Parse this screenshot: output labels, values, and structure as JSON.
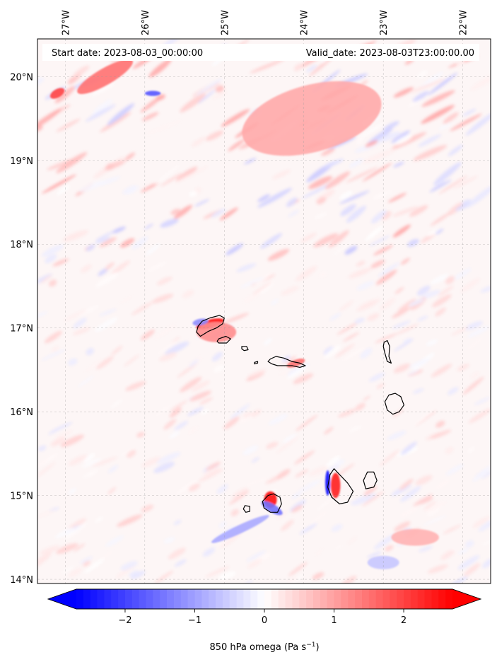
{
  "header": {
    "start_date": "Start date: 2023-08-03_00:00:00",
    "valid_date": "Valid_date: 2023-08-03T23:00:00.00"
  },
  "map": {
    "variable": "850 hPa omega",
    "unit": "Pa s",
    "unit_exponent": "−1",
    "lon_range": [
      -27.35,
      -21.65
    ],
    "lat_range": [
      13.95,
      20.45
    ],
    "lon_ticks": [
      {
        "value": -27,
        "label": "27°W"
      },
      {
        "value": -26,
        "label": "26°W"
      },
      {
        "value": -25,
        "label": "25°W"
      },
      {
        "value": -24,
        "label": "24°W"
      },
      {
        "value": -23,
        "label": "23°W"
      },
      {
        "value": -22,
        "label": "22°W"
      }
    ],
    "lat_ticks": [
      {
        "value": 20,
        "label": "20°N"
      },
      {
        "value": 19,
        "label": "19°N"
      },
      {
        "value": 18,
        "label": "18°N"
      },
      {
        "value": 17,
        "label": "17°N"
      },
      {
        "value": 16,
        "label": "16°N"
      },
      {
        "value": 15,
        "label": "15°N"
      },
      {
        "value": 14,
        "label": "14°N"
      }
    ],
    "gridlines": true,
    "coastline_color": "#000000",
    "islands": [
      {
        "lonlat": [
          [
            -25.33,
            17.02
          ],
          [
            -25.28,
            17.08
          ],
          [
            -25.18,
            17.12
          ],
          [
            -25.06,
            17.15
          ],
          [
            -25.0,
            17.12
          ],
          [
            -25.02,
            17.05
          ],
          [
            -25.1,
            17.0
          ],
          [
            -25.2,
            16.96
          ],
          [
            -25.3,
            16.9
          ],
          [
            -25.35,
            16.95
          ]
        ]
      },
      {
        "lonlat": [
          [
            -25.07,
            16.87
          ],
          [
            -24.98,
            16.9
          ],
          [
            -24.92,
            16.87
          ],
          [
            -24.97,
            16.82
          ],
          [
            -25.07,
            16.82
          ],
          [
            -25.09,
            16.84
          ]
        ]
      },
      {
        "lonlat": [
          [
            -24.78,
            16.78
          ],
          [
            -24.72,
            16.78
          ],
          [
            -24.7,
            16.74
          ],
          [
            -24.75,
            16.73
          ],
          [
            -24.78,
            16.75
          ]
        ]
      },
      {
        "lonlat": [
          [
            -24.62,
            16.59
          ],
          [
            -24.58,
            16.6
          ],
          [
            -24.58,
            16.58
          ],
          [
            -24.62,
            16.57
          ]
        ]
      },
      {
        "lonlat": [
          [
            -24.42,
            16.63
          ],
          [
            -24.35,
            16.66
          ],
          [
            -24.25,
            16.64
          ],
          [
            -24.15,
            16.6
          ],
          [
            -24.05,
            16.58
          ],
          [
            -23.98,
            16.55
          ],
          [
            -24.05,
            16.53
          ],
          [
            -24.15,
            16.55
          ],
          [
            -24.25,
            16.55
          ],
          [
            -24.33,
            16.55
          ],
          [
            -24.4,
            16.57
          ],
          [
            -24.45,
            16.6
          ]
        ]
      },
      {
        "lonlat": [
          [
            -22.99,
            16.83
          ],
          [
            -22.95,
            16.85
          ],
          [
            -22.92,
            16.78
          ],
          [
            -22.93,
            16.66
          ],
          [
            -22.9,
            16.58
          ],
          [
            -22.95,
            16.6
          ],
          [
            -22.98,
            16.7
          ],
          [
            -23.0,
            16.78
          ]
        ]
      },
      {
        "lonlat": [
          [
            -22.93,
            16.2
          ],
          [
            -22.85,
            16.22
          ],
          [
            -22.78,
            16.18
          ],
          [
            -22.74,
            16.08
          ],
          [
            -22.8,
            16.0
          ],
          [
            -22.88,
            15.97
          ],
          [
            -22.95,
            16.02
          ],
          [
            -22.98,
            16.12
          ]
        ]
      },
      {
        "lonlat": [
          [
            -23.62,
            15.32
          ],
          [
            -23.55,
            15.25
          ],
          [
            -23.45,
            15.15
          ],
          [
            -23.38,
            15.05
          ],
          [
            -23.45,
            14.92
          ],
          [
            -23.55,
            14.9
          ],
          [
            -23.65,
            14.98
          ],
          [
            -23.7,
            15.1
          ],
          [
            -23.67,
            15.25
          ]
        ]
      },
      {
        "lonlat": [
          [
            -23.2,
            15.28
          ],
          [
            -23.12,
            15.28
          ],
          [
            -23.08,
            15.18
          ],
          [
            -23.12,
            15.1
          ],
          [
            -23.22,
            15.08
          ],
          [
            -23.25,
            15.18
          ]
        ]
      },
      {
        "lonlat": [
          [
            -24.38,
            15.02
          ],
          [
            -24.3,
            14.98
          ],
          [
            -24.28,
            14.9
          ],
          [
            -24.33,
            14.8
          ],
          [
            -24.42,
            14.8
          ],
          [
            -24.5,
            14.85
          ],
          [
            -24.52,
            14.93
          ],
          [
            -24.45,
            15.0
          ]
        ]
      },
      {
        "lonlat": [
          [
            -24.74,
            14.88
          ],
          [
            -24.68,
            14.87
          ],
          [
            -24.68,
            14.81
          ],
          [
            -24.73,
            14.8
          ],
          [
            -24.76,
            14.84
          ]
        ]
      }
    ],
    "field": {
      "background_noise": true,
      "hotspots": [
        {
          "lon": -25.18,
          "lat": 17.05,
          "value": 2.6,
          "rx": 0.18,
          "ry": 0.05,
          "rotate": -15
        },
        {
          "lon": -25.1,
          "lat": 16.95,
          "value": 1.2,
          "rx": 0.25,
          "ry": 0.12,
          "rotate": 0
        },
        {
          "lon": -25.3,
          "lat": 17.07,
          "value": -1.2,
          "rx": 0.1,
          "ry": 0.04,
          "rotate": -10
        },
        {
          "lon": -24.1,
          "lat": 16.58,
          "value": 1.5,
          "rx": 0.12,
          "ry": 0.04,
          "rotate": -20
        },
        {
          "lon": -24.42,
          "lat": 14.95,
          "value": 2.6,
          "rx": 0.08,
          "ry": 0.1,
          "rotate": 0
        },
        {
          "lon": -24.4,
          "lat": 14.85,
          "value": -1.5,
          "rx": 0.15,
          "ry": 0.05,
          "rotate": 30
        },
        {
          "lon": -23.6,
          "lat": 15.12,
          "value": 2.4,
          "rx": 0.06,
          "ry": 0.15,
          "rotate": 0
        },
        {
          "lon": -23.7,
          "lat": 15.15,
          "value": -2.6,
          "rx": 0.03,
          "ry": 0.15,
          "rotate": 0
        },
        {
          "lon": -24.8,
          "lat": 14.6,
          "value": -0.9,
          "rx": 0.4,
          "ry": 0.05,
          "rotate": -25
        },
        {
          "lon": -22.6,
          "lat": 14.5,
          "value": 0.8,
          "rx": 0.3,
          "ry": 0.1,
          "rotate": 0
        },
        {
          "lon": -23.9,
          "lat": 19.5,
          "value": 0.9,
          "rx": 0.9,
          "ry": 0.4,
          "rotate": -15
        },
        {
          "lon": -26.5,
          "lat": 20.0,
          "value": 1.5,
          "rx": 0.4,
          "ry": 0.1,
          "rotate": -30
        },
        {
          "lon": -27.1,
          "lat": 19.8,
          "value": 2.0,
          "rx": 0.1,
          "ry": 0.05,
          "rotate": -30
        },
        {
          "lon": -25.9,
          "lat": 19.8,
          "value": -1.8,
          "rx": 0.1,
          "ry": 0.03,
          "rotate": 0
        },
        {
          "lon": -23.0,
          "lat": 14.2,
          "value": -0.6,
          "rx": 0.2,
          "ry": 0.08,
          "rotate": 0
        }
      ]
    }
  },
  "colorbar": {
    "min": -2.7,
    "max": 2.7,
    "extend": "both",
    "ticks": [
      {
        "value": -2,
        "label": "−2"
      },
      {
        "value": -1,
        "label": "−1"
      },
      {
        "value": 0,
        "label": "0"
      },
      {
        "value": 1,
        "label": "1"
      },
      {
        "value": 2,
        "label": "2"
      }
    ],
    "color_min": "#0000ff",
    "color_mid": "#ffffff",
    "color_max": "#ff0000"
  }
}
